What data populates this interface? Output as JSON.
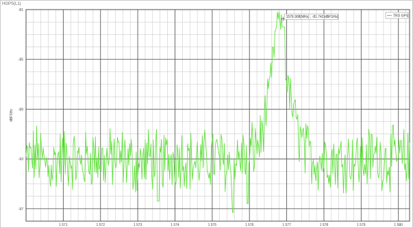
{
  "panel": {
    "title": "HGPS(L1)"
  },
  "colors": {
    "trace": "#5fe13a",
    "grid_major": "#5b5b5b",
    "grid_minor": "#c2c2c2",
    "axis_text": "#444444",
    "background": "#ffffff"
  },
  "chart_data": {
    "type": "line",
    "xlabel": "",
    "ylabel": "dBFSHz",
    "xlim": [
      1570.0,
      1580.3
    ],
    "ylim": [
      -98,
      -81
    ],
    "x_ticks": [
      1571,
      1572,
      1573,
      1574,
      1575,
      1576,
      1577,
      1578,
      1579,
      1580
    ],
    "x_tick_labels": [
      "1 571",
      "1 572",
      "1 573",
      "1 574",
      "1 575",
      "1 576",
      "1 577",
      "1 578",
      "1 579",
      "1 580"
    ],
    "y_ticks": [
      -81,
      -85,
      -89,
      -93,
      -97
    ],
    "y_tick_labels": [
      "-81",
      "-85",
      "-89",
      "-93",
      "-97"
    ],
    "grid": true,
    "legend": {
      "position": "top-right",
      "entries": [
        "TRD GPS"
      ]
    },
    "series": [
      {
        "name": "TRD GPS",
        "x": [
          1570.0,
          1570.3,
          1570.6,
          1570.9,
          1571.2,
          1571.5,
          1571.8,
          1572.1,
          1572.4,
          1572.7,
          1573.0,
          1573.3,
          1573.6,
          1573.9,
          1574.2,
          1574.5,
          1574.8,
          1575.1,
          1575.4,
          1575.7,
          1576.0,
          1576.3,
          1576.5,
          1576.6,
          1576.7,
          1576.75,
          1576.8,
          1576.85,
          1576.9,
          1576.95,
          1577.0,
          1577.1,
          1577.2,
          1577.3,
          1577.5,
          1577.8,
          1578.1,
          1578.4,
          1578.7,
          1579.0,
          1579.3,
          1579.6,
          1579.9,
          1580.2
        ],
        "y": [
          -93.2,
          -92.6,
          -93.8,
          -92.9,
          -93.0,
          -93.4,
          -92.7,
          -93.3,
          -92.8,
          -93.1,
          -93.6,
          -92.9,
          -93.2,
          -93.0,
          -92.7,
          -93.3,
          -93.1,
          -92.8,
          -93.4,
          -93.0,
          -92.6,
          -91.5,
          -88.5,
          -85.8,
          -83.0,
          -81.8,
          -81.3,
          -82.2,
          -83.5,
          -85.0,
          -86.6,
          -88.2,
          -89.5,
          -90.8,
          -92.4,
          -93.1,
          -92.8,
          -93.2,
          -92.9,
          -93.3,
          -92.7,
          -93.0,
          -92.9,
          -93.1
        ],
        "noise_amplitude": 2.2
      }
    ],
    "annotation": {
      "text": "1576.908[MHz] , -81.742[dBFSHz]",
      "x": 1576.908,
      "y": -81.742
    },
    "min_dips": [
      {
        "x": 1573.55,
        "y": -96.4
      },
      {
        "x": 1575.55,
        "y": -97.3
      },
      {
        "x": 1575.95,
        "y": -96.6
      }
    ]
  }
}
